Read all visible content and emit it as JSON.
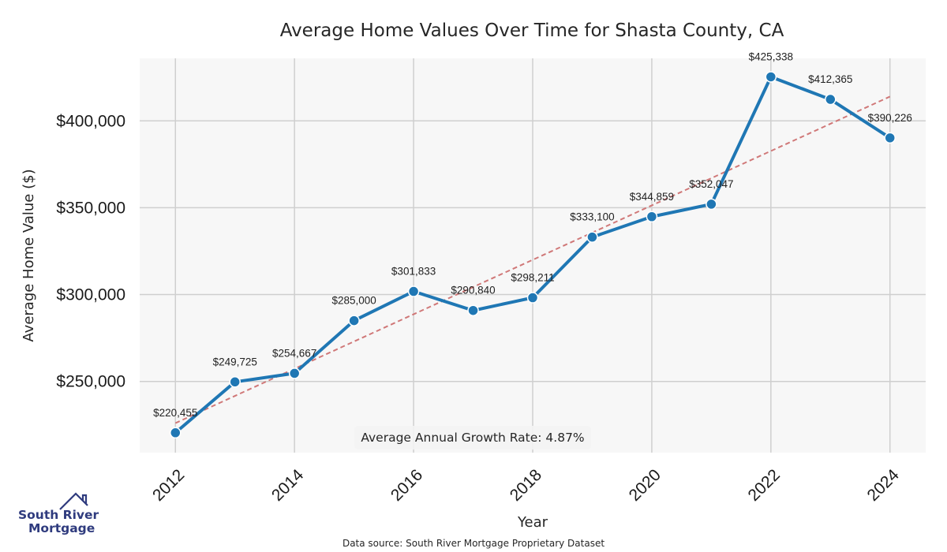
{
  "chart_data": {
    "type": "line",
    "title": "Average Home Values Over Time for Shasta County, CA",
    "xlabel": "Year",
    "ylabel": "Average Home Value ($)",
    "x": [
      2012,
      2013,
      2014,
      2015,
      2016,
      2017,
      2018,
      2019,
      2020,
      2021,
      2022,
      2023,
      2024
    ],
    "values": [
      220455,
      249725,
      254667,
      285000,
      301833,
      290840,
      298211,
      333100,
      344859,
      352047,
      425338,
      412365,
      390226
    ],
    "data_labels": [
      "$220,455",
      "$249,725",
      "$254,667",
      "$285,000",
      "$301,833",
      "$290,840",
      "$298,211",
      "$333,100",
      "$344,859",
      "$352,047",
      "$425,338",
      "$412,365",
      "$390,226"
    ],
    "x_ticks": [
      "2012",
      "2014",
      "2016",
      "2018",
      "2020",
      "2022",
      "2024"
    ],
    "x_tick_values": [
      2012,
      2014,
      2016,
      2018,
      2020,
      2022,
      2024
    ],
    "y_ticks": [
      "$250,000",
      "$300,000",
      "$350,000",
      "$400,000"
    ],
    "y_tick_values": [
      250000,
      300000,
      350000,
      400000
    ],
    "xlim": [
      2011.4,
      2024.6
    ],
    "ylim": [
      209000,
      436000
    ],
    "trend_line": {
      "start": [
        2012,
        226000
      ],
      "end": [
        2024,
        414000
      ]
    },
    "grid": true,
    "annotation": "Average Annual Growth Rate: 4.87%"
  },
  "colors": {
    "line": "#1f77b4",
    "trend": "#d07878",
    "grid": "#cfcfcf",
    "plot_bg": "#f7f7f7",
    "logo": "#2f3b7e"
  },
  "logo": {
    "line1": "South River",
    "line2": "Mortgage"
  },
  "footer": {
    "source": "Data source: South River Mortgage Proprietary Dataset"
  }
}
